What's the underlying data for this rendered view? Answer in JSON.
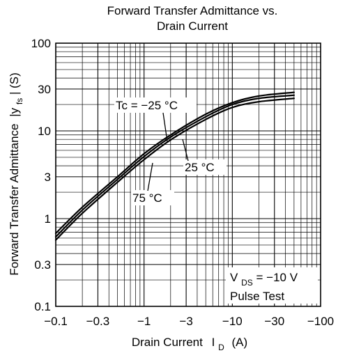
{
  "chart_data": {
    "type": "line",
    "title_lines": [
      "Forward Transfer Admittance vs.",
      "Drain Current"
    ],
    "xlabel": "Drain Current",
    "xlabel_symbol": "I",
    "xlabel_sub": "D",
    "xlabel_unit": "(A)",
    "ylabel": "Forward Transfer Admittance",
    "ylabel_symbol": "|y",
    "ylabel_sub": "fs",
    "ylabel_unit": "| (S)",
    "x_scale": "log",
    "y_scale": "log",
    "xlim": [
      -0.1,
      -100
    ],
    "ylim": [
      0.1,
      100
    ],
    "x_ticks": [
      -0.1,
      -0.3,
      -1,
      -3,
      -10,
      -30,
      -100
    ],
    "x_tick_labels": [
      "−0.1",
      "−0.3",
      "−1",
      "−3",
      "−10",
      "−30",
      "−100"
    ],
    "y_ticks": [
      0.1,
      0.3,
      1,
      3,
      10,
      30,
      100
    ],
    "y_tick_labels": [
      "0.1",
      "0.3",
      "1",
      "3",
      "10",
      "30",
      "100"
    ],
    "grid": true,
    "series": [
      {
        "name": "Tc = −25 °C",
        "x": [
          -0.1,
          -0.2,
          -0.5,
          -1,
          -2,
          -5,
          -10,
          -20,
          -50
        ],
        "y": [
          0.68,
          1.35,
          3.0,
          5.5,
          9.0,
          15.5,
          21.0,
          25.0,
          27.5
        ]
      },
      {
        "name": "25 °C",
        "x": [
          -0.1,
          -0.2,
          -0.5,
          -1,
          -2,
          -5,
          -10,
          -20,
          -50
        ],
        "y": [
          0.62,
          1.25,
          2.8,
          5.1,
          8.5,
          14.5,
          20.0,
          23.5,
          25.5
        ]
      },
      {
        "name": "75 °C",
        "x": [
          -0.1,
          -0.2,
          -0.5,
          -1,
          -2,
          -5,
          -10,
          -20,
          -50
        ],
        "y": [
          0.57,
          1.15,
          2.6,
          4.7,
          7.9,
          13.5,
          18.5,
          21.5,
          23.5
        ]
      }
    ],
    "annotations": {
      "curve_label_1": "Tc = −25 °C",
      "curve_label_2": "25 °C",
      "curve_label_3": "75 °C",
      "condition_symbol": "V",
      "condition_sub": "DS",
      "condition_value": " = −10 V",
      "condition_test": "Pulse Test"
    }
  }
}
